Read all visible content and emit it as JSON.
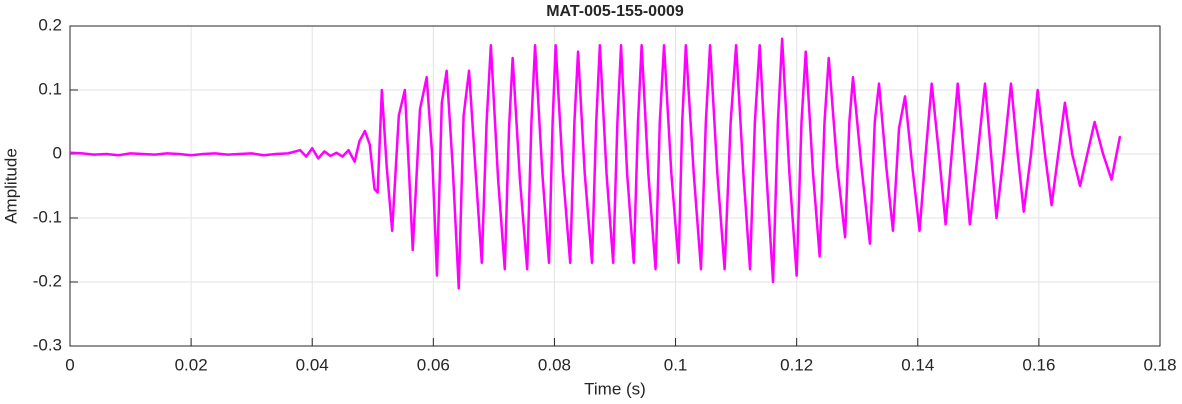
{
  "chart_data": {
    "type": "line",
    "title": "MAT-005-155-0009",
    "xlabel": "Time (s)",
    "ylabel": "Amplitude",
    "color": "#ff00ff",
    "grid": true,
    "xlim": [
      0,
      0.18
    ],
    "xticks": [
      0,
      0.02,
      0.04,
      0.06,
      0.08,
      0.1,
      0.12,
      0.14,
      0.16,
      0.18
    ],
    "ylim": [
      -0.3,
      0.2
    ],
    "yticks": [
      -0.3,
      -0.2,
      -0.1,
      0,
      0.1,
      0.2
    ],
    "x": [
      0,
      0.002,
      0.004,
      0.006,
      0.008,
      0.01,
      0.012,
      0.014,
      0.016,
      0.018,
      0.02,
      0.022,
      0.024,
      0.026,
      0.028,
      0.03,
      0.032,
      0.034,
      0.036,
      0.038,
      0.039,
      0.04,
      0.041,
      0.042,
      0.043,
      0.044,
      0.045,
      0.046,
      0.047,
      0.0478,
      0.0487,
      0.0495,
      0.0503,
      0.0508,
      0.0515,
      0.0523,
      0.0532,
      0.0543,
      0.0553,
      0.056,
      0.0566,
      0.0578,
      0.0589,
      0.0598,
      0.0606,
      0.0614,
      0.0622,
      0.0632,
      0.0642,
      0.065,
      0.0659,
      0.067,
      0.068,
      0.0688,
      0.0695,
      0.0707,
      0.0718,
      0.0725,
      0.0731,
      0.0743,
      0.0755,
      0.0762,
      0.0768,
      0.078,
      0.0791,
      0.0797,
      0.0802,
      0.0814,
      0.0826,
      0.0833,
      0.0839,
      0.085,
      0.0862,
      0.0869,
      0.0875,
      0.0886,
      0.0897,
      0.0904,
      0.091,
      0.092,
      0.0931,
      0.0938,
      0.0944,
      0.0955,
      0.0967,
      0.0974,
      0.0981,
      0.0993,
      0.1005,
      0.1011,
      0.1017,
      0.103,
      0.1042,
      0.105,
      0.1057,
      0.1069,
      0.1081,
      0.1091,
      0.11,
      0.1112,
      0.1123,
      0.1131,
      0.1139,
      0.115,
      0.1161,
      0.1169,
      0.1176,
      0.1188,
      0.12,
      0.1208,
      0.1215,
      0.1227,
      0.1238,
      0.1246,
      0.1253,
      0.1267,
      0.128,
      0.1287,
      0.1293,
      0.1307,
      0.1321,
      0.1329,
      0.1336,
      0.1348,
      0.1359,
      0.1369,
      0.1379,
      0.1391,
      0.1403,
      0.1413,
      0.1423,
      0.1435,
      0.1446,
      0.1456,
      0.1466,
      0.1476,
      0.1486,
      0.1499,
      0.1511,
      0.1521,
      0.153,
      0.1542,
      0.1554,
      0.1565,
      0.1575,
      0.1587,
      0.1598,
      0.161,
      0.1621,
      0.1632,
      0.1643,
      0.1655,
      0.1668,
      0.168,
      0.1692,
      0.1706,
      0.172,
      0.1734
    ],
    "values": [
      0.002,
      0.001,
      -0.001,
      0,
      -0.002,
      0.001,
      0,
      -0.001,
      0.001,
      0,
      -0.002,
      0,
      0.001,
      -0.001,
      0,
      0.001,
      -0.002,
      0,
      0.001,
      0.006,
      -0.004,
      0.009,
      -0.007,
      0.004,
      -0.003,
      0.002,
      -0.004,
      0.006,
      -0.012,
      0.02,
      0.036,
      0.015,
      -0.055,
      -0.06,
      0.1,
      -0.02,
      -0.12,
      0.06,
      0.1,
      -0.03,
      -0.15,
      0.07,
      0.12,
      0,
      -0.19,
      0.08,
      0.13,
      -0.02,
      -0.21,
      0.06,
      0.13,
      -0.03,
      -0.17,
      0.05,
      0.17,
      -0.04,
      -0.18,
      0.04,
      0.15,
      -0.04,
      -0.18,
      0.05,
      0.17,
      -0.03,
      -0.17,
      0.05,
      0.17,
      -0.03,
      -0.17,
      0.05,
      0.16,
      -0.03,
      -0.17,
      0.05,
      0.17,
      -0.03,
      -0.17,
      0.05,
      0.17,
      -0.03,
      -0.17,
      0.05,
      0.17,
      -0.03,
      -0.18,
      0.05,
      0.17,
      -0.03,
      -0.17,
      0.05,
      0.17,
      -0.03,
      -0.18,
      0.05,
      0.17,
      -0.03,
      -0.18,
      0.05,
      0.17,
      -0.03,
      -0.18,
      0.05,
      0.17,
      -0.03,
      -0.2,
      0.05,
      0.18,
      -0.03,
      -0.19,
      0.05,
      0.16,
      -0.03,
      -0.16,
      0.05,
      0.15,
      -0.02,
      -0.13,
      0.05,
      0.12,
      -0.02,
      -0.14,
      0.05,
      0.11,
      -0.02,
      -0.12,
      0.04,
      0.09,
      -0.02,
      -0.12,
      0,
      0.11,
      0,
      -0.11,
      0,
      0.11,
      0,
      -0.11,
      0,
      0.11,
      0,
      -0.1,
      0,
      0.11,
      0,
      -0.09,
      0,
      0.1,
      0,
      -0.08,
      0,
      0.08,
      0,
      -0.05,
      0,
      0.05,
      0,
      -0.04,
      0.028
    ]
  }
}
